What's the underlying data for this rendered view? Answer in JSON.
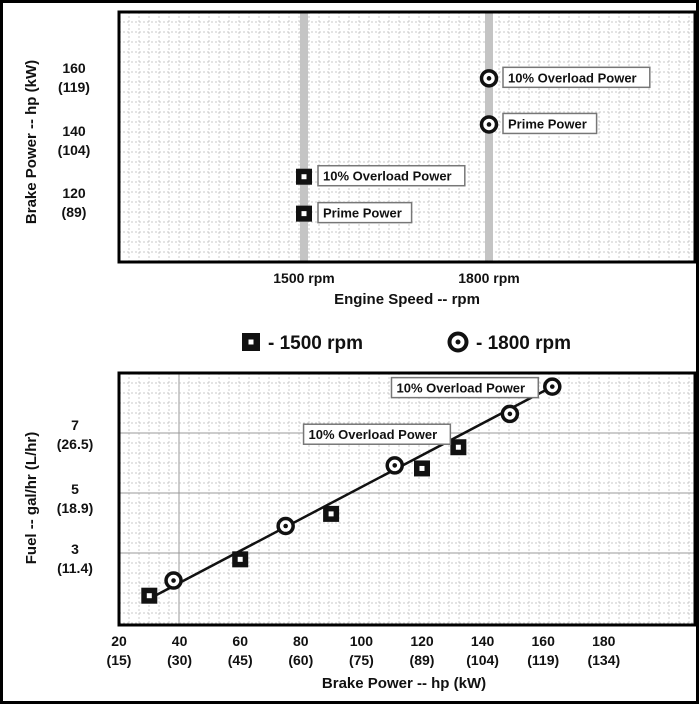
{
  "chart_data": [
    {
      "type": "scatter",
      "xlabel": "Engine Speed -- rpm",
      "ylabel": "Brake Power -- hp (kW)",
      "x_ticks": [
        "1500 rpm",
        "1800 rpm"
      ],
      "y_ticks": [
        {
          "value": 120,
          "label": "120",
          "sublabel": "(89)"
        },
        {
          "value": 140,
          "label": "140",
          "sublabel": "(104)"
        },
        {
          "value": 160,
          "label": "160",
          "sublabel": "(119)"
        }
      ],
      "ylim": [
        107,
        176
      ],
      "series": [
        {
          "name": "1500 rpm",
          "marker": "square",
          "points": [
            {
              "x": "1500 rpm",
              "y": 119,
              "annotation": "Prime Power"
            },
            {
              "x": "1500 rpm",
              "y": 131,
              "annotation": "10% Overload Power"
            }
          ]
        },
        {
          "name": "1800 rpm",
          "marker": "circle",
          "points": [
            {
              "x": "1800 rpm",
              "y": 148,
              "annotation": "Prime Power"
            },
            {
              "x": "1800 rpm",
              "y": 163,
              "annotation": "10% Overload Power"
            }
          ]
        }
      ]
    },
    {
      "type": "scatter",
      "xlabel": "Brake Power -- hp (kW)",
      "ylabel": "Fuel -- gal/hr (L/hr)",
      "xlim": [
        20,
        200
      ],
      "ylim": [
        0.6,
        9.0
      ],
      "x_ticks": [
        {
          "value": 20,
          "label": "20",
          "sublabel": "(15)"
        },
        {
          "value": 40,
          "label": "40",
          "sublabel": "(30)"
        },
        {
          "value": 60,
          "label": "60",
          "sublabel": "(45)"
        },
        {
          "value": 80,
          "label": "80",
          "sublabel": "(60)"
        },
        {
          "value": 100,
          "label": "100",
          "sublabel": "(75)"
        },
        {
          "value": 120,
          "label": "120",
          "sublabel": "(89)"
        },
        {
          "value": 140,
          "label": "140",
          "sublabel": "(104)"
        },
        {
          "value": 160,
          "label": "160",
          "sublabel": "(119)"
        },
        {
          "value": 180,
          "label": "180",
          "sublabel": "(134)"
        }
      ],
      "y_ticks": [
        {
          "value": 3,
          "label": "3",
          "sublabel": "(11.4)"
        },
        {
          "value": 5,
          "label": "5",
          "sublabel": "(18.9)"
        },
        {
          "value": 7,
          "label": "7",
          "sublabel": "(26.5)"
        }
      ],
      "series": [
        {
          "name": "1500 rpm",
          "marker": "square",
          "points": [
            {
              "x": 30,
              "y": 1.6
            },
            {
              "x": 60,
              "y": 2.8
            },
            {
              "x": 90,
              "y": 4.3
            },
            {
              "x": 120,
              "y": 5.8
            },
            {
              "x": 132,
              "y": 6.5,
              "annotation": "10% Overload Power"
            }
          ]
        },
        {
          "name": "1800 rpm",
          "marker": "circle",
          "points": [
            {
              "x": 38,
              "y": 2.1
            },
            {
              "x": 75,
              "y": 3.9
            },
            {
              "x": 111,
              "y": 5.9
            },
            {
              "x": 149,
              "y": 7.6
            },
            {
              "x": 163,
              "y": 8.5,
              "annotation": "10% Overload Power"
            }
          ]
        }
      ],
      "trendline": {
        "from": {
          "x": 30,
          "y": 1.5
        },
        "to": {
          "x": 163,
          "y": 8.5
        }
      }
    }
  ],
  "legend": {
    "items": [
      {
        "marker": "square",
        "label": "- 1500 rpm"
      },
      {
        "marker": "circle",
        "label": "- 1800 rpm"
      }
    ]
  },
  "colors": {
    "ink": "#111111",
    "grid_major": "#999999",
    "grid_minor": "#b8b8b8",
    "rpm_band": "#c4c4c4",
    "frame": "#000000"
  }
}
